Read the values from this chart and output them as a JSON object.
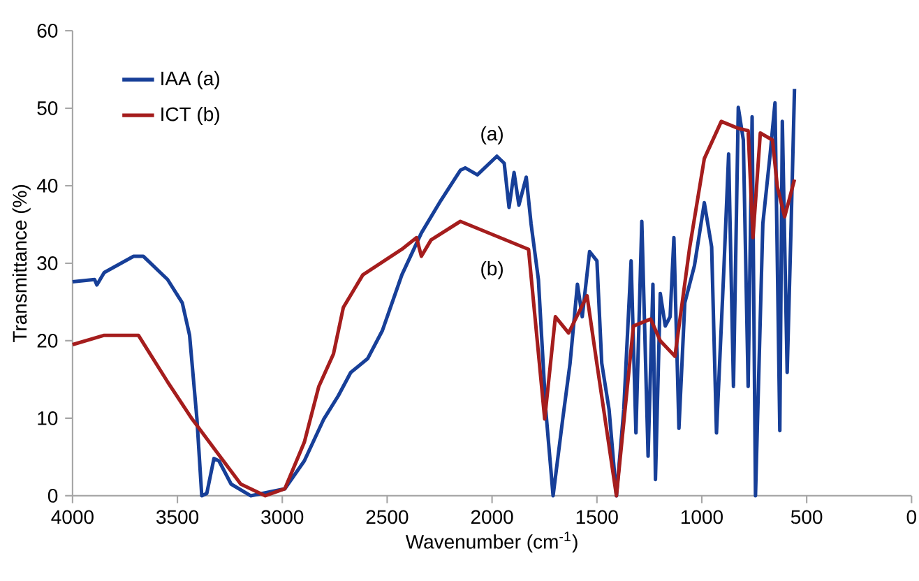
{
  "chart_data": {
    "type": "line",
    "xlabel": "Wavenumber (cm$^{-1}$)",
    "ylabel": "Transmittance (%)",
    "xlim": [
      4000,
      0
    ],
    "ylim": [
      0,
      60
    ],
    "xticks": [
      4000,
      3500,
      3000,
      2500,
      2000,
      1500,
      1000,
      500,
      0
    ],
    "yticks": [
      0,
      10,
      20,
      30,
      40,
      50,
      60
    ],
    "legend": "top left",
    "grid": false,
    "marker": "none",
    "line_style": "solid",
    "annotations": [
      "(a)",
      "(b)"
    ],
    "series": [
      {
        "name": "IAA (a)",
        "color": "#173f98",
        "x": [
          4000,
          3895,
          3884,
          3849,
          3709,
          3663,
          3547,
          3477,
          3442,
          3407,
          3384,
          3360,
          3326,
          3302,
          3244,
          3151,
          2988,
          2895,
          2802,
          2733,
          2674,
          2593,
          2523,
          2430,
          2337,
          2244,
          2151,
          2128,
          2070,
          1977,
          1942,
          1919,
          1895,
          1872,
          1837,
          1814,
          1779,
          1744,
          1709,
          1663,
          1628,
          1593,
          1570,
          1535,
          1500,
          1477,
          1442,
          1407,
          1372,
          1337,
          1314,
          1286,
          1256,
          1233,
          1221,
          1198,
          1174,
          1151,
          1133,
          1109,
          1081,
          1035,
          988,
          953,
          930,
          895,
          872,
          849,
          826,
          802,
          779,
          760,
          744,
          709,
          674,
          651,
          628,
          616,
          593,
          574,
          558
        ],
        "values": [
          27.6,
          27.9,
          27.2,
          28.8,
          30.9,
          30.9,
          27.9,
          24.9,
          20.7,
          9.9,
          0,
          0.3,
          4.8,
          4.5,
          1.5,
          0,
          0.9,
          4.5,
          9.9,
          12.9,
          15.9,
          17.7,
          21.3,
          28.5,
          33.9,
          38.1,
          42,
          42.3,
          41.4,
          43.8,
          42.9,
          37.2,
          41.7,
          37.5,
          41.1,
          35.1,
          27.9,
          11.1,
          0,
          9.9,
          17.1,
          27.3,
          23.1,
          31.5,
          30.3,
          17.1,
          11.1,
          0,
          11.1,
          30.3,
          8.1,
          35.4,
          5.1,
          27.3,
          2.1,
          26.1,
          21.9,
          23.1,
          33.3,
          8.7,
          24.9,
          29.7,
          37.8,
          32.1,
          8.1,
          29.1,
          44.1,
          14.1,
          50.1,
          45.9,
          14.1,
          48.9,
          0,
          35.1,
          44.1,
          50.7,
          8.4,
          48.3,
          15.9,
          35.1,
          52.5
        ]
      },
      {
        "name": "ICT (b)",
        "color": "#a51d1d",
        "x": [
          4000,
          3849,
          3686,
          3547,
          3430,
          3314,
          3198,
          3081,
          2988,
          2895,
          2826,
          2756,
          2709,
          2616,
          2430,
          2360,
          2337,
          2291,
          2151,
          1826,
          1749,
          1698,
          1635,
          1547,
          1500,
          1407,
          1326,
          1244,
          1198,
          1128,
          1058,
          988,
          907,
          826,
          779,
          756,
          721,
          663,
          640,
          605,
          558
        ],
        "values": [
          19.5,
          20.7,
          20.7,
          14.7,
          9.9,
          5.7,
          1.5,
          0,
          0.9,
          6.9,
          14.1,
          18.3,
          24.3,
          28.5,
          31.8,
          33.3,
          30.9,
          33,
          35.4,
          31.8,
          9.9,
          23.1,
          21,
          25.8,
          17,
          0,
          21.9,
          22.8,
          20,
          18,
          32,
          43.5,
          48.3,
          47.4,
          47.1,
          33.3,
          46.8,
          45.9,
          39.9,
          36,
          40.8
        ]
      }
    ]
  }
}
